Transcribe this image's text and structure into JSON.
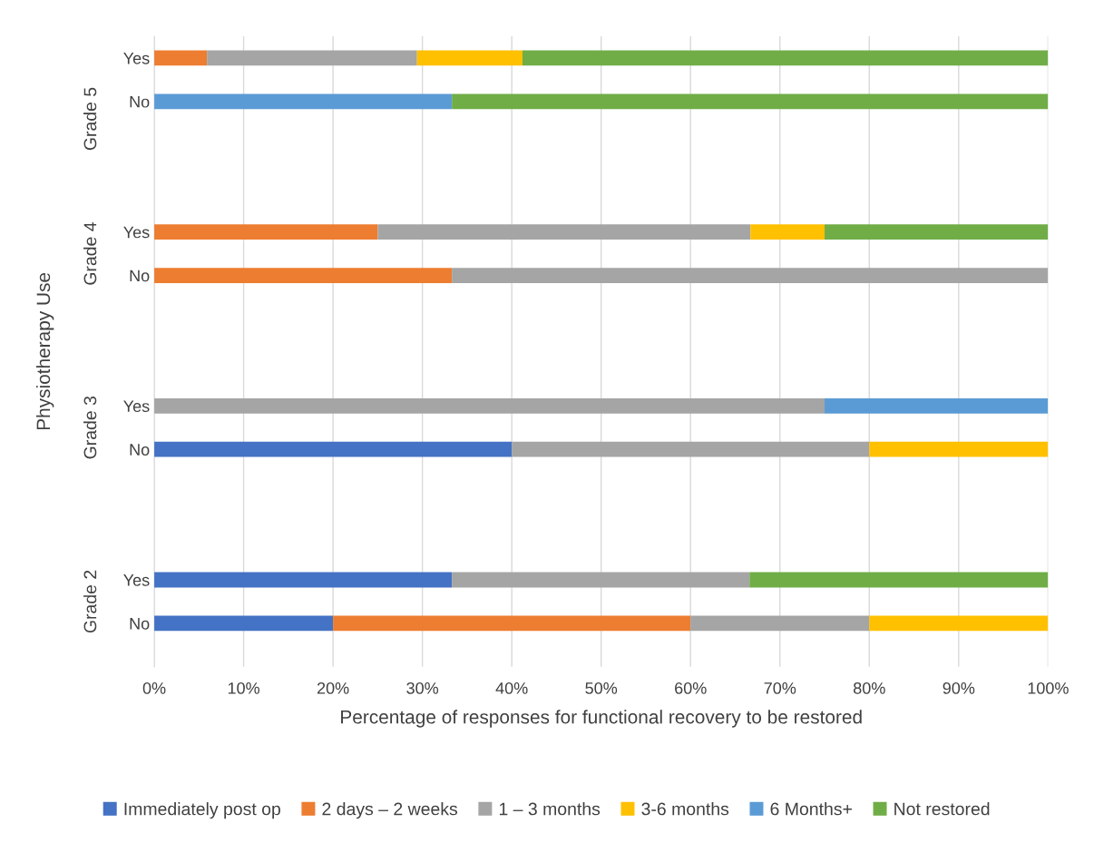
{
  "chart_data": {
    "type": "bar",
    "orientation": "horizontal",
    "stacked": true,
    "categories": [
      "Yes",
      "No",
      "Yes",
      "No",
      "Yes",
      "No",
      "Yes",
      "No"
    ],
    "series": [
      {
        "name": "Immediately post op",
        "color": "#4472c4",
        "values": [
          0,
          0,
          0,
          0,
          0,
          40,
          33.3,
          20
        ]
      },
      {
        "name": "2 days – 2 weeks",
        "color": "#ed7d31",
        "values": [
          5.9,
          0,
          25,
          33.3,
          0,
          0,
          0,
          40
        ]
      },
      {
        "name": "1 – 3 months",
        "color": "#a5a5a5",
        "values": [
          23.5,
          0,
          41.7,
          66.7,
          75,
          40,
          33.3,
          20
        ]
      },
      {
        "name": "3-6 months",
        "color": "#ffc000",
        "values": [
          11.8,
          0,
          8.3,
          0,
          0,
          20,
          0,
          20
        ]
      },
      {
        "name": "6 Months+",
        "color": "#5b9bd5",
        "values": [
          0,
          33.3,
          0,
          0,
          25,
          0,
          0,
          0
        ]
      },
      {
        "name": "Not restored",
        "color": "#70ad47",
        "values": [
          58.8,
          66.7,
          25,
          0,
          0,
          0,
          33.4,
          0
        ]
      }
    ],
    "annotations": [
      "Grade 5",
      "Grade 4",
      "Grade 3",
      "Grade 2"
    ],
    "xlabel": "Percentage of responses for functional recovery to be restored",
    "ylabel": "Physiotherapy Use",
    "xlim": [
      0,
      100
    ],
    "xticks": [
      {
        "value": 0,
        "label": "0%"
      },
      {
        "value": 10,
        "label": "10%"
      },
      {
        "value": 20,
        "label": "20%"
      },
      {
        "value": 30,
        "label": "30%"
      },
      {
        "value": 40,
        "label": "40%"
      },
      {
        "value": 50,
        "label": "50%"
      },
      {
        "value": 60,
        "label": "60%"
      },
      {
        "value": 70,
        "label": "70%"
      },
      {
        "value": 80,
        "label": "80%"
      },
      {
        "value": 90,
        "label": "90%"
      },
      {
        "value": 100,
        "label": "100%"
      }
    ],
    "grid": "x",
    "legend": "bottom"
  }
}
